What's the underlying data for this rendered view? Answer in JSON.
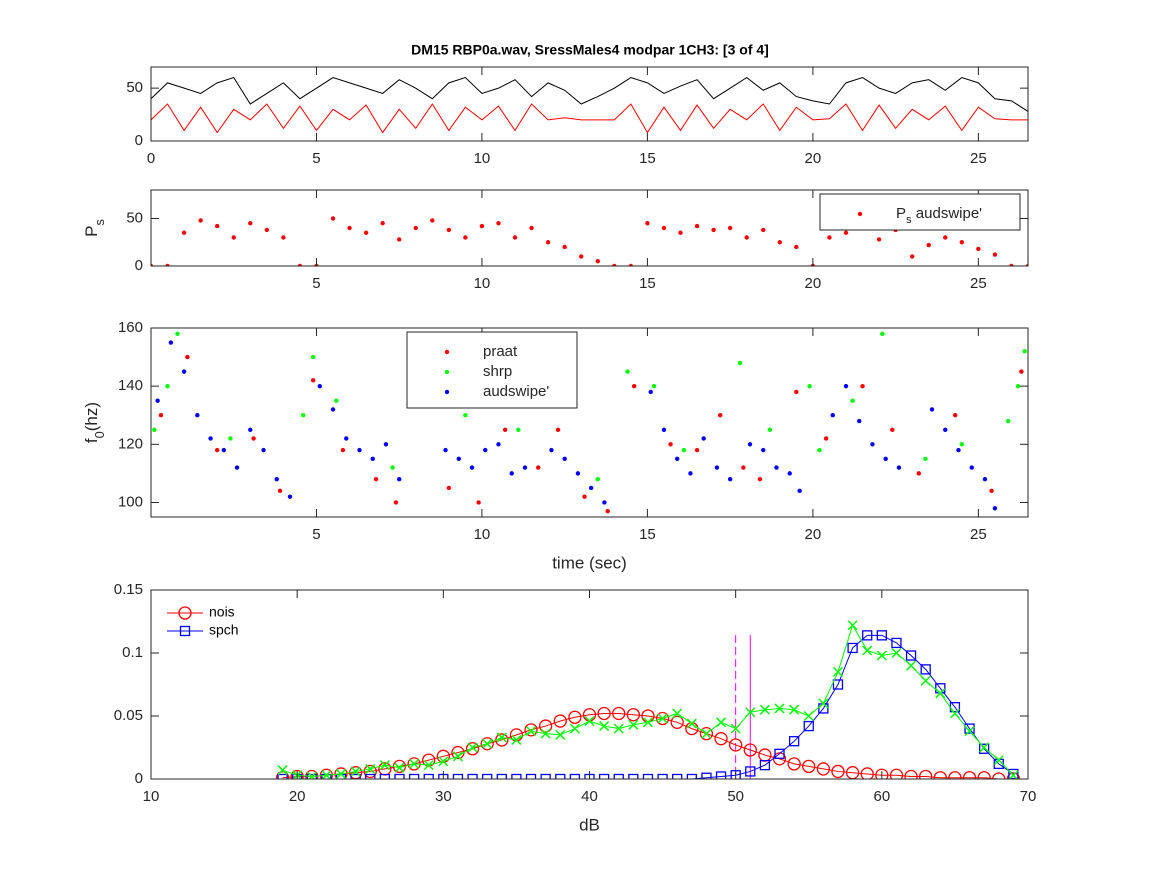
{
  "chart_data": [
    {
      "type": "line",
      "title": "DM15 RBP0a.wav,  SressMales4 modpar 1CH3: [3 of 4]",
      "xlim": [
        0,
        26.5
      ],
      "xticks": [
        0,
        5,
        10,
        15,
        20,
        25
      ],
      "ylim": [
        0,
        70
      ],
      "yticks": [
        0,
        50
      ],
      "x": [
        0,
        0.5,
        1,
        1.5,
        2,
        2.5,
        3,
        3.5,
        4,
        4.5,
        5,
        5.5,
        6,
        6.5,
        7,
        7.5,
        8,
        8.5,
        9,
        9.5,
        10,
        10.5,
        11,
        11.5,
        12,
        12.5,
        13,
        13.5,
        14,
        14.5,
        15,
        15.5,
        16,
        16.5,
        17,
        17.5,
        18,
        18.5,
        19,
        19.5,
        20,
        20.5,
        21,
        21.5,
        22,
        22.5,
        23,
        23.5,
        24,
        24.5,
        25,
        25.5,
        26,
        26.5
      ],
      "series": [
        {
          "color": "#000000",
          "values": [
            40,
            55,
            50,
            45,
            55,
            60,
            35,
            45,
            55,
            40,
            50,
            60,
            55,
            50,
            45,
            58,
            50,
            40,
            55,
            60,
            45,
            50,
            58,
            42,
            55,
            48,
            35,
            42,
            50,
            60,
            55,
            45,
            52,
            58,
            40,
            50,
            60,
            48,
            55,
            42,
            38,
            35,
            55,
            60,
            50,
            45,
            55,
            58,
            48,
            60,
            55,
            40,
            38,
            28
          ]
        },
        {
          "color": "#ff0000",
          "values": [
            20,
            35,
            10,
            32,
            8,
            30,
            20,
            35,
            12,
            33,
            10,
            30,
            20,
            34,
            8,
            30,
            12,
            35,
            10,
            32,
            20,
            33,
            10,
            35,
            20,
            22,
            20,
            20,
            20,
            35,
            8,
            32,
            10,
            34,
            12,
            30,
            20,
            35,
            10,
            32,
            20,
            21,
            35,
            10,
            34,
            12,
            30,
            20,
            33,
            10,
            32,
            21,
            20,
            20
          ]
        }
      ]
    },
    {
      "type": "scatter",
      "ylabel": "Ps",
      "legend": "northeast",
      "xlim": [
        0,
        26.5
      ],
      "xticks": [
        5,
        10,
        15,
        20,
        25
      ],
      "ylim": [
        0,
        80
      ],
      "yticks": [
        0,
        50
      ],
      "x": [
        0,
        0.5,
        1,
        1.5,
        2,
        2.5,
        3,
        3.5,
        4,
        4.5,
        5,
        5.5,
        6,
        6.5,
        7,
        7.5,
        8,
        8.5,
        9,
        9.5,
        10,
        10.5,
        11,
        11.5,
        12,
        12.5,
        13,
        13.5,
        14,
        14.5,
        15,
        15.5,
        16,
        16.5,
        17,
        17.5,
        18,
        18.5,
        19,
        19.5,
        20,
        20.5,
        21,
        21.5,
        22,
        22.5,
        23,
        23.5,
        24,
        24.5,
        25,
        25.5,
        26,
        26.5
      ],
      "series": [
        {
          "name": "Ps audswipe'",
          "color": "#ff0000",
          "values": [
            0,
            0,
            35,
            48,
            42,
            30,
            45,
            38,
            30,
            0,
            0,
            50,
            40,
            35,
            45,
            28,
            40,
            48,
            38,
            30,
            42,
            45,
            30,
            40,
            25,
            20,
            10,
            5,
            0,
            0,
            45,
            40,
            35,
            42,
            38,
            40,
            30,
            38,
            25,
            20,
            0,
            30,
            35,
            40,
            28,
            38,
            10,
            22,
            30,
            25,
            18,
            12,
            0,
            0
          ]
        }
      ]
    },
    {
      "type": "scatter",
      "xlabel": "time (sec)",
      "ylabel": "f0(hz)",
      "legend": "north",
      "xlim": [
        0,
        26.5
      ],
      "xticks": [
        5,
        10,
        15,
        20,
        25
      ],
      "ylim": [
        95,
        160
      ],
      "yticks": [
        100,
        120,
        140,
        160
      ],
      "series": [
        {
          "name": "praat",
          "color": "#ff0000",
          "x": [
            0.3,
            1.1,
            2,
            3.1,
            3.9,
            4.9,
            5.8,
            6.8,
            7.4,
            9,
            9.9,
            10.7,
            11.7,
            12.3,
            13.1,
            13.8,
            14.6,
            15.7,
            16.5,
            17.2,
            17.9,
            18.4,
            19.5,
            20.4,
            21.5,
            22.4,
            23.2,
            24.3,
            25.4,
            26.3
          ],
          "values": [
            130,
            150,
            118,
            122,
            104,
            142,
            118,
            108,
            100,
            105,
            100,
            125,
            112,
            125,
            102,
            97,
            140,
            120,
            118,
            130,
            112,
            108,
            138,
            122,
            140,
            125,
            110,
            130,
            104,
            145
          ]
        },
        {
          "name": "shrp",
          "color": "#00ff00",
          "x": [
            0.1,
            0.5,
            0.8,
            2.4,
            4.6,
            4.9,
            5.6,
            7.3,
            9.5,
            11.1,
            13.5,
            14.4,
            15.2,
            16.1,
            17.8,
            18.7,
            19.9,
            20.2,
            21.2,
            22.1,
            23.4,
            24.5,
            25.9,
            26.2,
            26.4
          ],
          "values": [
            125,
            140,
            158,
            122,
            130,
            150,
            135,
            112,
            130,
            125,
            108,
            145,
            140,
            118,
            148,
            125,
            140,
            118,
            135,
            158,
            115,
            120,
            128,
            140,
            152
          ]
        },
        {
          "name": "audswipe'",
          "color": "#0000ff",
          "x": [
            0.2,
            0.6,
            1,
            1.4,
            1.8,
            2.2,
            2.6,
            3,
            3.4,
            3.8,
            4.2,
            5.1,
            5.5,
            5.9,
            6.3,
            6.7,
            7.1,
            7.5,
            8.9,
            9.3,
            9.7,
            10.1,
            10.5,
            10.9,
            11.3,
            12.1,
            12.5,
            12.9,
            13.3,
            13.7,
            15.1,
            15.5,
            15.9,
            16.3,
            16.7,
            17.1,
            17.5,
            18.1,
            18.5,
            18.9,
            19.3,
            19.6,
            20.6,
            21,
            21.4,
            21.8,
            22.2,
            22.6,
            23.6,
            24,
            24.4,
            24.8,
            25.2,
            25.5
          ],
          "values": [
            135,
            155,
            145,
            130,
            122,
            118,
            112,
            125,
            118,
            108,
            102,
            140,
            132,
            122,
            118,
            115,
            120,
            108,
            118,
            115,
            112,
            118,
            120,
            110,
            112,
            118,
            115,
            110,
            105,
            100,
            138,
            125,
            115,
            110,
            122,
            112,
            108,
            120,
            118,
            112,
            110,
            104,
            130,
            140,
            128,
            120,
            115,
            112,
            132,
            125,
            118,
            112,
            108,
            98
          ]
        }
      ]
    },
    {
      "type": "line",
      "xlabel": "dB",
      "legend": "northwest",
      "legend_box": false,
      "xlim": [
        10,
        70
      ],
      "xticks": [
        10,
        20,
        30,
        40,
        50,
        60,
        70
      ],
      "ylim": [
        0,
        0.15
      ],
      "yticks": [
        0,
        0.05,
        0.1,
        0.15
      ],
      "vlines": [
        {
          "x": 50,
          "color": "#ff00ff",
          "style": "dashed"
        },
        {
          "x": 51,
          "color": "#ff00ff",
          "style": "solid"
        }
      ],
      "x": [
        19,
        20,
        21,
        22,
        23,
        24,
        25,
        26,
        27,
        28,
        29,
        30,
        31,
        32,
        33,
        34,
        35,
        36,
        37,
        38,
        39,
        40,
        41,
        42,
        43,
        44,
        45,
        46,
        47,
        48,
        49,
        50,
        51,
        52,
        53,
        54,
        55,
        56,
        57,
        58,
        59,
        60,
        61,
        62,
        63,
        64,
        65,
        66,
        67,
        68,
        69
      ],
      "series": [
        {
          "name": "nois",
          "color": "#ff0000",
          "marker": "o",
          "values": [
            0.001,
            0.002,
            0.002,
            0.003,
            0.004,
            0.005,
            0.006,
            0.008,
            0.01,
            0.012,
            0.015,
            0.018,
            0.021,
            0.024,
            0.028,
            0.031,
            0.035,
            0.039,
            0.042,
            0.046,
            0.049,
            0.051,
            0.052,
            0.052,
            0.051,
            0.05,
            0.048,
            0.045,
            0.04,
            0.036,
            0.032,
            0.027,
            0.023,
            0.019,
            0.016,
            0.012,
            0.01,
            0.008,
            0.006,
            0.005,
            0.004,
            0.003,
            0.003,
            0.002,
            0.002,
            0.001,
            0.001,
            0.001,
            0.001,
            0,
            0
          ]
        },
        {
          "name": "spch",
          "color": "#0000ff",
          "marker": "s",
          "values": [
            0,
            0,
            0,
            0,
            0,
            0,
            0,
            0,
            0,
            0,
            0,
            0,
            0,
            0,
            0,
            0,
            0,
            0,
            0,
            0,
            0,
            0,
            0,
            0,
            0,
            0,
            0,
            0,
            0,
            0.001,
            0.002,
            0.003,
            0.006,
            0.011,
            0.02,
            0.03,
            0.042,
            0.056,
            0.075,
            0.104,
            0.114,
            0.114,
            0.108,
            0.098,
            0.087,
            0.072,
            0.057,
            0.04,
            0.024,
            0.012,
            0.004
          ]
        },
        {
          "color": "#00ff00",
          "marker": "x",
          "values": [
            0.007,
            0.003,
            0.002,
            0.003,
            0.004,
            0.006,
            0.008,
            0.011,
            0.009,
            0.012,
            0.011,
            0.014,
            0.018,
            0.025,
            0.028,
            0.033,
            0.031,
            0.038,
            0.036,
            0.035,
            0.04,
            0.046,
            0.042,
            0.04,
            0.043,
            0.045,
            0.048,
            0.052,
            0.044,
            0.036,
            0.045,
            0.04,
            0.053,
            0.055,
            0.056,
            0.055,
            0.05,
            0.06,
            0.085,
            0.122,
            0.102,
            0.098,
            0.1,
            0.09,
            0.078,
            0.068,
            0.052,
            0.038,
            0.025,
            0.015,
            0.003
          ]
        }
      ]
    }
  ]
}
